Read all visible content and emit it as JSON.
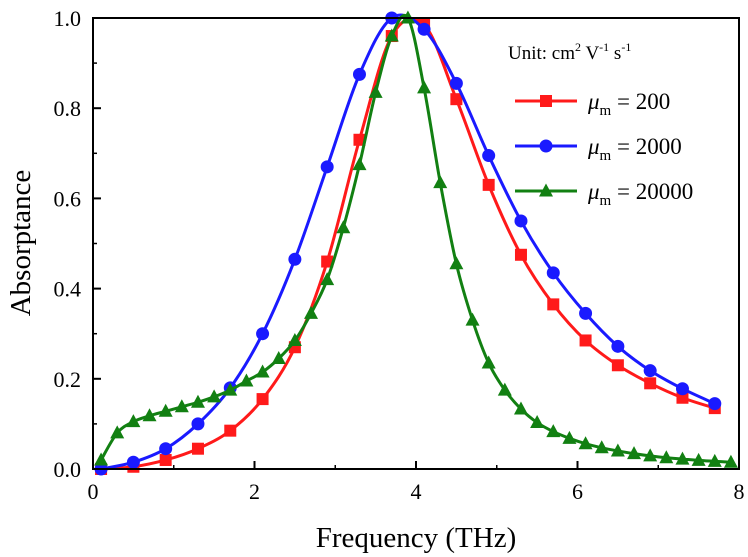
{
  "chart_data": {
    "type": "line",
    "xlabel": "Frequency (THz)",
    "ylabel": "Absorptance",
    "xlim": [
      0,
      8
    ],
    "ylim": [
      0,
      1.0
    ],
    "x_ticks": [
      "0",
      "2",
      "4",
      "6",
      "8"
    ],
    "y_ticks": [
      "0.0",
      "0.2",
      "0.4",
      "0.6",
      "0.8",
      "1.0"
    ],
    "legend_position": "top-right",
    "annotation": {
      "prefix": "Unit: cm",
      "sup1": "2",
      "mid": " V",
      "sup2": "-1",
      "mid2": " s",
      "sup3": "-1"
    },
    "series": [
      {
        "name": "μm = 200",
        "label_symbol": "μ",
        "label_sub": "m",
        "label_value": " = 200",
        "color": "#ff1a1a",
        "marker": "square",
        "x": [
          0.1,
          0.5,
          0.9,
          1.3,
          1.7,
          2.1,
          2.5,
          2.9,
          3.3,
          3.7,
          4.1,
          4.5,
          4.9,
          5.3,
          5.7,
          6.1,
          6.5,
          6.9,
          7.3,
          7.7
        ],
        "y": [
          0.0,
          0.005,
          0.02,
          0.045,
          0.085,
          0.155,
          0.27,
          0.46,
          0.73,
          0.96,
          0.985,
          0.82,
          0.63,
          0.475,
          0.365,
          0.285,
          0.23,
          0.19,
          0.158,
          0.135
        ]
      },
      {
        "name": "μm = 2000",
        "label_symbol": "μ",
        "label_sub": "m",
        "label_value": " = 2000",
        "color": "#1a1aff",
        "marker": "circle",
        "x": [
          0.1,
          0.5,
          0.9,
          1.3,
          1.7,
          2.1,
          2.5,
          2.9,
          3.3,
          3.7,
          4.1,
          4.5,
          4.9,
          5.3,
          5.7,
          6.1,
          6.5,
          6.9,
          7.3,
          7.7
        ],
        "y": [
          0.0,
          0.015,
          0.045,
          0.1,
          0.18,
          0.3,
          0.465,
          0.67,
          0.875,
          1.0,
          0.975,
          0.855,
          0.695,
          0.55,
          0.435,
          0.345,
          0.272,
          0.218,
          0.178,
          0.145
        ]
      },
      {
        "name": "μm = 20000",
        "label_symbol": "μ",
        "label_sub": "m",
        "label_value": " = 20000",
        "color": "#128012",
        "marker": "triangle",
        "x": [
          0.1,
          0.3,
          0.5,
          0.7,
          0.9,
          1.1,
          1.3,
          1.5,
          1.7,
          1.9,
          2.1,
          2.3,
          2.5,
          2.7,
          2.9,
          3.1,
          3.3,
          3.5,
          3.7,
          3.9,
          4.1,
          4.3,
          4.5,
          4.7,
          4.9,
          5.1,
          5.3,
          5.5,
          5.7,
          5.9,
          6.1,
          6.3,
          6.5,
          6.7,
          6.9,
          7.1,
          7.3,
          7.5,
          7.7,
          7.9
        ],
        "y": [
          0.02,
          0.08,
          0.105,
          0.118,
          0.128,
          0.138,
          0.148,
          0.16,
          0.175,
          0.195,
          0.215,
          0.245,
          0.285,
          0.345,
          0.42,
          0.535,
          0.675,
          0.835,
          0.96,
          1.0,
          0.845,
          0.635,
          0.455,
          0.33,
          0.235,
          0.175,
          0.133,
          0.103,
          0.083,
          0.068,
          0.056,
          0.047,
          0.04,
          0.034,
          0.029,
          0.025,
          0.022,
          0.019,
          0.017,
          0.015
        ]
      }
    ]
  }
}
